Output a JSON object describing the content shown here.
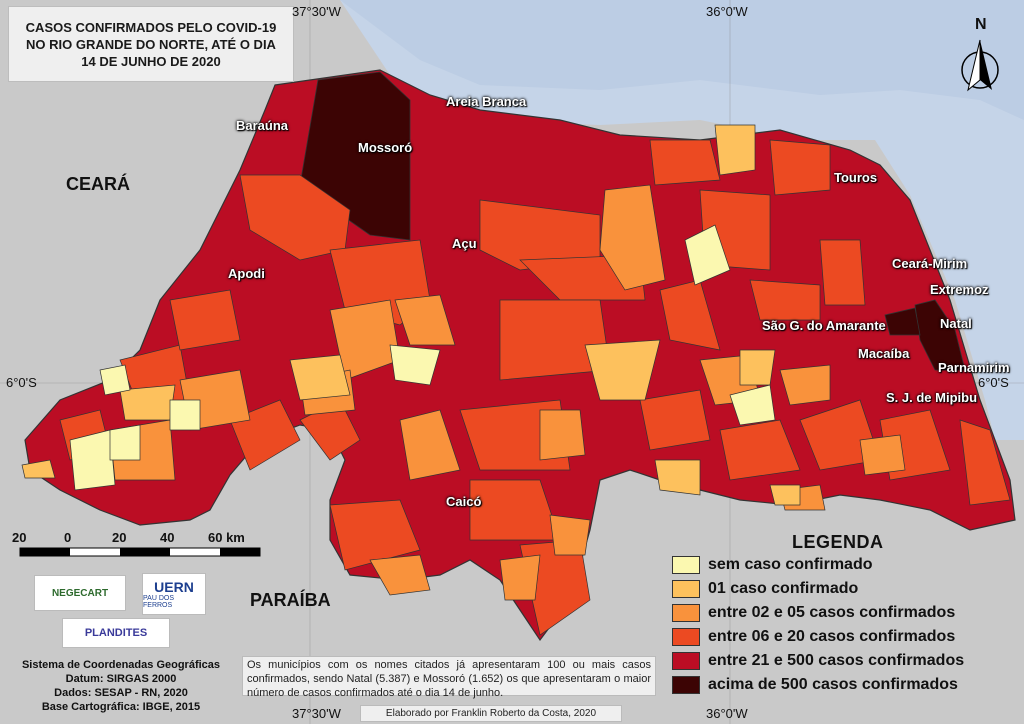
{
  "title": {
    "line1": "CASOS CONFIRMADOS PELO COVID-19",
    "line2": "NO RIO GRANDE DO NORTE, ATÉ O DIA",
    "line3": "14 DE JUNHO DE 2020"
  },
  "coordinates": {
    "top_left": "37°30'W",
    "top_right": "36°0'W",
    "bottom_left": "37°30'W",
    "bottom_right": "36°0'W",
    "left_lat": "6°0'S",
    "right_lat": "6°0'S"
  },
  "states": {
    "ceara": "CEARÁ",
    "paraiba": "PARAÍBA"
  },
  "cities": {
    "barauna": "Baraúna",
    "mossoro": "Mossoró",
    "areia_branca": "Areia Branca",
    "touros": "Touros",
    "acu": "Açu",
    "apodi": "Apodi",
    "ceara_mirim": "Ceará-Mirim",
    "extremoz": "Extremoz",
    "natal": "Natal",
    "sao_goncalo": "São G. do Amarante",
    "macaiba": "Macaíba",
    "parnamirim": "Parnamirim",
    "sjmipibu": "S. J. de Mipibu",
    "caico": "Caicó"
  },
  "north_label": "N",
  "scale": {
    "labels": [
      "20",
      "0",
      "20",
      "40",
      "60 km"
    ]
  },
  "legend": {
    "title": "LEGENDA",
    "items": [
      {
        "label": "sem caso confirmado",
        "color": "#fbf8b0"
      },
      {
        "label": "01 caso confirmado",
        "color": "#fdc15d"
      },
      {
        "label": "entre 02 e 05 casos confirmados",
        "color": "#f9923c"
      },
      {
        "label": "entre 06 e 20 casos confirmados",
        "color": "#ec4a22"
      },
      {
        "label": "entre 21 e 500 casos confirmados",
        "color": "#bb0d24"
      },
      {
        "label": "acima de 500 casos confirmados",
        "color": "#3c0404"
      }
    ]
  },
  "info": {
    "line1": "Sistema de Coordenadas Geográficas",
    "line2": "Datum: SIRGAS 2000",
    "line3": "Dados: SESAP - RN, 2020",
    "line4": "Base Cartográfica: IBGE, 2015"
  },
  "note": "Os municípios com os nomes citados já apresentaram 100 ou mais casos confirmados, sendo Natal (5.387) e Mossoró (1.652) os que apresentaram o maior número de casos confirmados até o dia 14 de junho.",
  "credit": "Elaborado por Franklin Roberto da Costa, 2020",
  "logos": {
    "negecart": "NEGECART",
    "uern": "UERN",
    "uern_sub": "PAU DOS FERROS",
    "plandites": "PLANDITES"
  },
  "colors": {
    "ocean": "#c5d4e8",
    "land": "#c9c9c9"
  }
}
